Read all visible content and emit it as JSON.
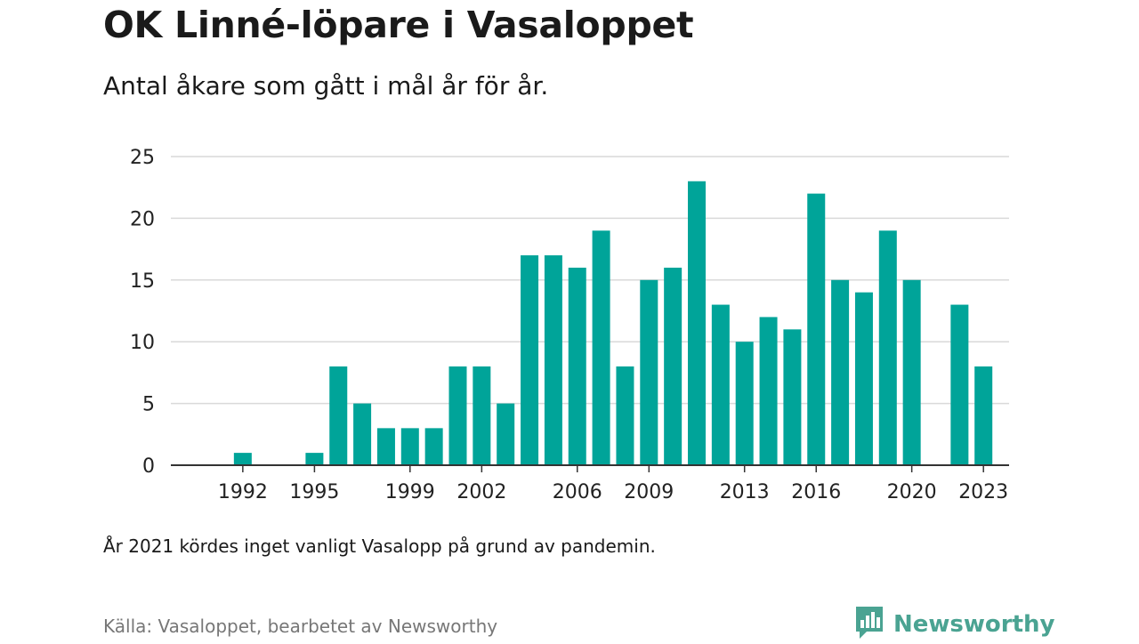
{
  "header": {
    "title": "OK Linné-löpare i Vasaloppet",
    "subtitle": "Antal åkare som gått i mål år för år."
  },
  "footer": {
    "note": "År 2021 kördes inget vanligt Vasalopp på grund av pandemin.",
    "source": "Källa: Vasaloppet, bearbetet av Newsworthy",
    "brand": "Newsworthy",
    "brand_icon": "bar-chart-speech-bubble-icon"
  },
  "colors": {
    "bar": "#00a499",
    "grid": "#d9d9d9",
    "axis": "#333333",
    "brand": "#4aa392"
  },
  "chart_data": {
    "type": "bar",
    "title": "OK Linné-löpare i Vasaloppet",
    "subtitle": "Antal åkare som gått i mål år för år.",
    "xlabel": "",
    "ylabel": "",
    "ylim": [
      0,
      25
    ],
    "yticks": [
      0,
      5,
      10,
      15,
      20,
      25
    ],
    "xticks": [
      "1992",
      "1995",
      "1999",
      "2002",
      "2006",
      "2009",
      "2013",
      "2016",
      "2020",
      "2023"
    ],
    "grid": true,
    "categories": [
      "1991",
      "1992",
      "1993",
      "1994",
      "1995",
      "1996",
      "1997",
      "1998",
      "1999",
      "2000",
      "2001",
      "2002",
      "2003",
      "2004",
      "2005",
      "2006",
      "2007",
      "2008",
      "2009",
      "2010",
      "2011",
      "2012",
      "2013",
      "2014",
      "2015",
      "2016",
      "2017",
      "2018",
      "2019",
      "2020",
      "2021",
      "2022",
      "2023"
    ],
    "values": [
      0,
      1,
      0,
      0,
      1,
      8,
      5,
      3,
      3,
      3,
      8,
      8,
      5,
      17,
      17,
      16,
      19,
      8,
      15,
      16,
      23,
      13,
      10,
      12,
      11,
      22,
      15,
      14,
      19,
      15,
      0,
      13,
      8
    ]
  }
}
